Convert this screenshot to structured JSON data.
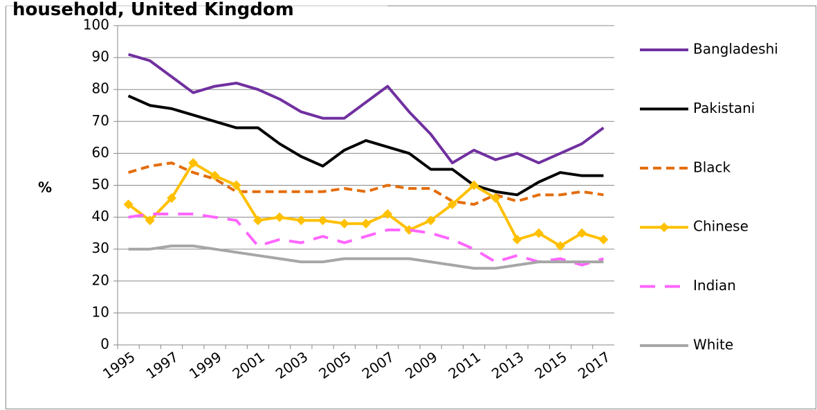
{
  "chart_data": {
    "type": "line",
    "title": "household, United Kingdom",
    "y_label": "%",
    "categories": [
      "1995",
      null,
      "1997",
      null,
      "1999",
      null,
      "2001",
      null,
      "2003",
      null,
      "2005",
      null,
      "2007",
      null,
      "2009",
      null,
      "2011",
      null,
      "2013",
      null,
      "2015",
      null,
      "2017"
    ],
    "series": [
      {
        "name": "Bangladeshi",
        "color": "#7030a0",
        "values": [
          91,
          89,
          84,
          79,
          81,
          82,
          80,
          77,
          73,
          71,
          71,
          76,
          81,
          73,
          66,
          57,
          61,
          58,
          60,
          57,
          60,
          63,
          68
        ]
      },
      {
        "name": "Pakistani",
        "color": "#000000",
        "values": [
          78,
          75,
          74,
          72,
          70,
          68,
          68,
          63,
          59,
          56,
          61,
          64,
          62,
          60,
          55,
          55,
          50,
          48,
          47,
          51,
          54,
          53,
          53
        ]
      },
      {
        "name": "Black",
        "color": "#e46c0a",
        "dash": "short",
        "values": [
          54,
          56,
          57,
          54,
          52,
          48,
          48,
          48,
          48,
          48,
          49,
          48,
          50,
          49,
          49,
          45,
          44,
          47,
          45,
          47,
          47,
          48,
          47
        ]
      },
      {
        "name": "Chinese",
        "color": "#ffc000",
        "marker": "diamond",
        "values": [
          44,
          39,
          46,
          57,
          53,
          50,
          39,
          40,
          39,
          39,
          38,
          38,
          41,
          36,
          39,
          44,
          50,
          46,
          33,
          35,
          31,
          35,
          33
        ]
      },
      {
        "name": "Indian",
        "color": "#ff66ff",
        "dash": "long",
        "values": [
          40,
          41,
          41,
          41,
          40,
          39,
          31,
          33,
          32,
          34,
          32,
          34,
          36,
          36,
          35,
          33,
          30,
          26,
          28,
          26,
          27,
          25,
          27
        ]
      },
      {
        "name": "White",
        "color": "#a6a6a6",
        "values": [
          30,
          30,
          31,
          31,
          30,
          29,
          28,
          27,
          26,
          26,
          27,
          27,
          27,
          27,
          26,
          25,
          24,
          24,
          25,
          26,
          26,
          26,
          26
        ]
      }
    ],
    "ylim": [
      0,
      100
    ],
    "yticks": [
      0,
      10,
      20,
      30,
      40,
      50,
      60,
      70,
      80,
      90,
      100
    ],
    "grid": true,
    "legend": "right"
  }
}
